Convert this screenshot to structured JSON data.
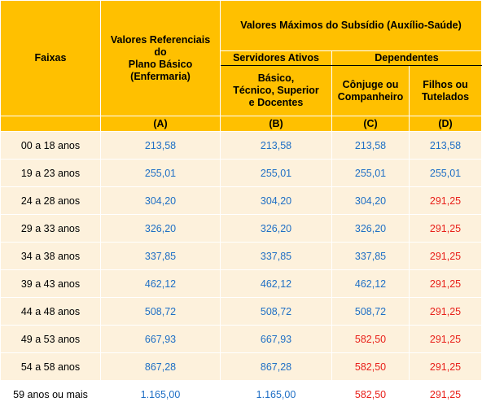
{
  "headers": {
    "faixas": "Faixas",
    "referenciais_line1": "Valores Referenciais",
    "referenciais_line2": "do",
    "referenciais_line3": "Plano Básico",
    "referenciais_line4": "(Enfermaria)",
    "maximos": "Valores Máximos do Subsídio (Auxílio-Saúde)",
    "servidores": "Servidores Ativos",
    "dependentes": "Dependentes",
    "basico_line1": "Básico,",
    "basico_line2": "Técnico, Superior",
    "basico_line3": "e Docentes",
    "conjuge_line1": "Cônjuge ou",
    "conjuge_line2": "Companheiro",
    "filhos_line1": "Filhos ou",
    "filhos_line2": "Tutelados",
    "col_a": "(A)",
    "col_b": "(B)",
    "col_c": "(C)",
    "col_d": "(D)"
  },
  "rows": [
    {
      "faixa": "00 a 18 anos",
      "a": "213,58",
      "b": "213,58",
      "c": "213,58",
      "c_color": "blue",
      "d": "213,58",
      "d_color": "blue"
    },
    {
      "faixa": "19 a 23 anos",
      "a": "255,01",
      "b": "255,01",
      "c": "255,01",
      "c_color": "blue",
      "d": "255,01",
      "d_color": "blue"
    },
    {
      "faixa": "24 a 28 anos",
      "a": "304,20",
      "b": "304,20",
      "c": "304,20",
      "c_color": "blue",
      "d": "291,25",
      "d_color": "red"
    },
    {
      "faixa": "29 a 33 anos",
      "a": "326,20",
      "b": "326,20",
      "c": "326,20",
      "c_color": "blue",
      "d": "291,25",
      "d_color": "red"
    },
    {
      "faixa": "34 a 38 anos",
      "a": "337,85",
      "b": "337,85",
      "c": "337,85",
      "c_color": "blue",
      "d": "291,25",
      "d_color": "red"
    },
    {
      "faixa": "39 a 43 anos",
      "a": "462,12",
      "b": "462,12",
      "c": "462,12",
      "c_color": "blue",
      "d": "291,25",
      "d_color": "red"
    },
    {
      "faixa": "44 a 48 anos",
      "a": "508,72",
      "b": "508,72",
      "c": "508,72",
      "c_color": "blue",
      "d": "291,25",
      "d_color": "red"
    },
    {
      "faixa": "49 a 53 anos",
      "a": "667,93",
      "b": "667,93",
      "c": "582,50",
      "c_color": "red",
      "d": "291,25",
      "d_color": "red"
    },
    {
      "faixa": "54 a 58 anos",
      "a": "867,28",
      "b": "867,28",
      "c": "582,50",
      "c_color": "red",
      "d": "291,25",
      "d_color": "red"
    },
    {
      "faixa": "59 anos ou mais",
      "a": "1.165,00",
      "b": "1.165,00",
      "c": "582,50",
      "c_color": "red",
      "d": "291,25",
      "d_color": "red"
    }
  ],
  "colors": {
    "header_bg": "#ffc000",
    "row_bg": "#fdf1dc",
    "value_blue": "#1f6fc5",
    "value_red": "#e8201a"
  }
}
